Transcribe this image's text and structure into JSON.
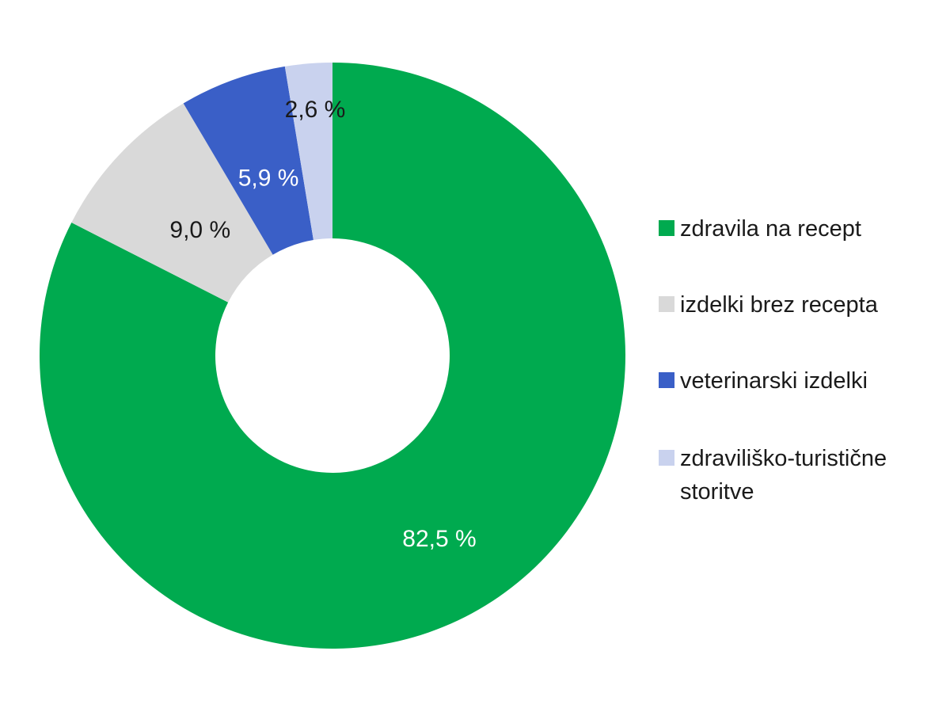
{
  "chart_data": {
    "type": "pie",
    "variant": "donut",
    "title": "",
    "slices": [
      {
        "label": "zdravila na recept",
        "value": 82.5,
        "value_label": "82,5 %",
        "color": "#00AA4F",
        "label_color": "#ffffff"
      },
      {
        "label": "izdelki brez recepta",
        "value": 9.0,
        "value_label": "9,0 %",
        "color": "#D9D9D9",
        "label_color": "#1a1a1a"
      },
      {
        "label": "veterinarski izdelki",
        "value": 5.9,
        "value_label": "5,9 %",
        "color": "#3A5FC7",
        "label_color": "#ffffff"
      },
      {
        "label": "zdraviliško-turistične storitve",
        "label_lines": [
          "zdraviliško-turistične",
          "storitve"
        ],
        "value": 2.6,
        "value_label": "2,6 %",
        "color": "#C9D2EE",
        "label_color": "#1a1a1a"
      }
    ],
    "legend_position": "right",
    "start": "top, clockwise"
  }
}
